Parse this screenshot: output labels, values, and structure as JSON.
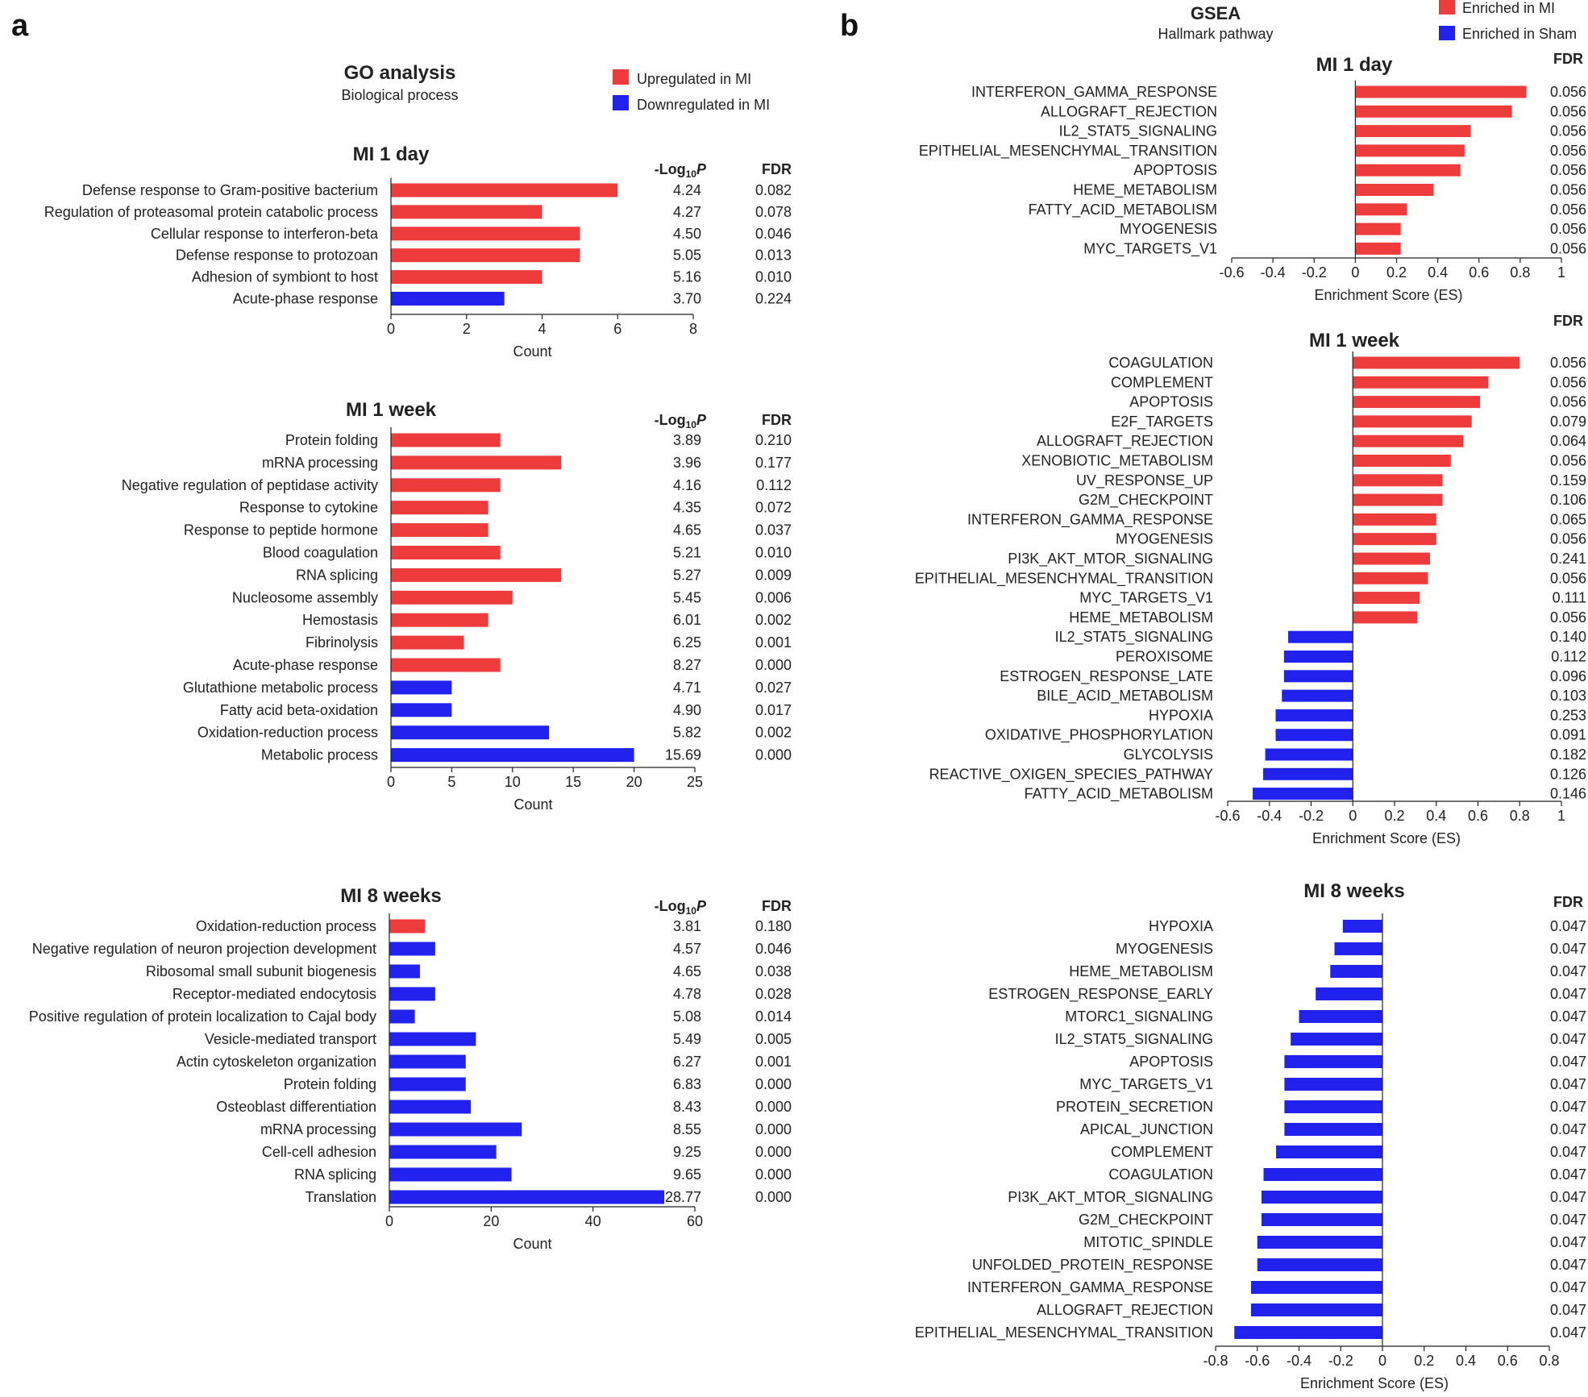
{
  "colors": {
    "up": "#ee3b3b",
    "down": "#2222ee",
    "axis": "#222222",
    "text": "#222222"
  },
  "panel_a": {
    "letter": "a",
    "title": "GO analysis",
    "subtitle": "Biological process",
    "legend": {
      "up": "Upregulated in MI",
      "down": "Downregulated in MI"
    },
    "col_logp_prefix": "-Log",
    "col_logp_sub": "10",
    "col_logp_suffix": "P",
    "col_fdr": "FDR"
  },
  "panel_b": {
    "letter": "b",
    "title": "GSEA",
    "subtitle": "Hallmark pathway",
    "legend": {
      "up": "Enriched in MI",
      "down": "Enriched in Sham"
    },
    "col_fdr": "FDR"
  },
  "chart_data": [
    {
      "id": "go_1day",
      "type": "bar",
      "orientation": "horizontal",
      "title": "MI 1 day",
      "xlabel": "Count",
      "xlim": [
        0,
        8
      ],
      "xticks": [
        0,
        2,
        4,
        6,
        8
      ],
      "categories": [
        "Defense response to Gram-positive bacterium",
        "Regulation of proteasomal protein catabolic process",
        "Cellular response to interferon-beta",
        "Defense response to protozoan",
        "Adhesion of symbiont to host",
        "Acute-phase response"
      ],
      "values": [
        6,
        4,
        5,
        5,
        4,
        3
      ],
      "direction": [
        "up",
        "up",
        "up",
        "up",
        "up",
        "down"
      ],
      "logp": [
        "4.24",
        "4.27",
        "4.50",
        "5.05",
        "5.16",
        "3.70"
      ],
      "fdr": [
        "0.082",
        "0.078",
        "0.046",
        "0.013",
        "0.010",
        "0.224"
      ]
    },
    {
      "id": "go_1week",
      "type": "bar",
      "orientation": "horizontal",
      "title": "MI 1 week",
      "xlabel": "Count",
      "xlim": [
        0,
        25
      ],
      "xticks": [
        0,
        5,
        10,
        15,
        20,
        25
      ],
      "categories": [
        "Protein folding",
        "mRNA processing",
        "Negative regulation of peptidase activity",
        "Response to cytokine",
        "Response to peptide hormone",
        "Blood coagulation",
        "RNA splicing",
        "Nucleosome assembly",
        "Hemostasis",
        "Fibrinolysis",
        "Acute-phase response",
        "Glutathione metabolic process",
        "Fatty acid beta-oxidation",
        "Oxidation-reduction process",
        "Metabolic process"
      ],
      "values": [
        9,
        14,
        9,
        8,
        8,
        9,
        14,
        10,
        8,
        6,
        9,
        5,
        5,
        13,
        20
      ],
      "direction": [
        "up",
        "up",
        "up",
        "up",
        "up",
        "up",
        "up",
        "up",
        "up",
        "up",
        "up",
        "down",
        "down",
        "down",
        "down"
      ],
      "logp": [
        "3.89",
        "3.96",
        "4.16",
        "4.35",
        "4.65",
        "5.21",
        "5.27",
        "5.45",
        "6.01",
        "6.25",
        "8.27",
        "4.71",
        "4.90",
        "5.82",
        "15.69"
      ],
      "fdr": [
        "0.210",
        "0.177",
        "0.112",
        "0.072",
        "0.037",
        "0.010",
        "0.009",
        "0.006",
        "0.002",
        "0.001",
        "0.000",
        "0.027",
        "0.017",
        "0.002",
        "0.000"
      ]
    },
    {
      "id": "go_8weeks",
      "type": "bar",
      "orientation": "horizontal",
      "title": "MI 8 weeks",
      "xlabel": "Count",
      "xlim": [
        0,
        60
      ],
      "xticks": [
        0,
        20,
        40,
        60
      ],
      "categories": [
        "Oxidation-reduction process",
        "Negative regulation of neuron projection development",
        "Ribosomal small subunit biogenesis",
        "Receptor-mediated endocytosis",
        "Positive regulation of protein localization to Cajal body",
        "Vesicle-mediated transport",
        "Actin cytoskeleton organization",
        "Protein folding",
        "Osteoblast differentiation",
        "mRNA processing",
        "Cell-cell adhesion",
        "RNA splicing",
        "Translation"
      ],
      "values": [
        7,
        9,
        6,
        9,
        5,
        17,
        15,
        15,
        16,
        26,
        21,
        24,
        54
      ],
      "direction": [
        "up",
        "down",
        "down",
        "down",
        "down",
        "down",
        "down",
        "down",
        "down",
        "down",
        "down",
        "down",
        "down"
      ],
      "logp": [
        "3.81",
        "4.57",
        "4.65",
        "4.78",
        "5.08",
        "5.49",
        "6.27",
        "6.83",
        "8.43",
        "8.55",
        "9.25",
        "9.65",
        "28.77"
      ],
      "fdr": [
        "0.180",
        "0.046",
        "0.038",
        "0.028",
        "0.014",
        "0.005",
        "0.001",
        "0.000",
        "0.000",
        "0.000",
        "0.000",
        "0.000",
        "0.000"
      ]
    },
    {
      "id": "gsea_1day",
      "type": "bar",
      "orientation": "horizontal",
      "title": "MI 1 day",
      "xlabel": "Enrichment Score (ES)",
      "xlim": [
        -0.6,
        1
      ],
      "xticks": [
        "-0.6",
        "-0.4",
        "-0.2",
        "0",
        "0.2",
        "0.4",
        "0.6",
        "0.8",
        "1"
      ],
      "categories": [
        "INTERFERON_GAMMA_RESPONSE",
        "ALLOGRAFT_REJECTION",
        "IL2_STAT5_SIGNALING",
        "EPITHELIAL_MESENCHYMAL_TRANSITION",
        "APOPTOSIS",
        "HEME_METABOLISM",
        "FATTY_ACID_METABOLISM",
        "MYOGENESIS",
        "MYC_TARGETS_V1"
      ],
      "values": [
        0.83,
        0.76,
        0.56,
        0.53,
        0.51,
        0.38,
        0.25,
        0.22,
        0.22
      ],
      "fdr": [
        "0.056",
        "0.056",
        "0.056",
        "0.056",
        "0.056",
        "0.056",
        "0.056",
        "0.056",
        "0.056"
      ]
    },
    {
      "id": "gsea_1week",
      "type": "bar",
      "orientation": "horizontal",
      "title": "MI 1 week",
      "xlabel": "Enrichment Score (ES)",
      "xlim": [
        -0.6,
        1
      ],
      "xticks": [
        "-0.6",
        "-0.4",
        "-0.2",
        "0",
        "0.2",
        "0.4",
        "0.6",
        "0.8",
        "1"
      ],
      "categories": [
        "COAGULATION",
        "COMPLEMENT",
        "APOPTOSIS",
        "E2F_TARGETS",
        "ALLOGRAFT_REJECTION",
        "XENOBIOTIC_METABOLISM",
        "UV_RESPONSE_UP",
        "G2M_CHECKPOINT",
        "INTERFERON_GAMMA_RESPONSE",
        "MYOGENESIS",
        "PI3K_AKT_MTOR_SIGNALING",
        "EPITHELIAL_MESENCHYMAL_TRANSITION",
        "MYC_TARGETS_V1",
        "HEME_METABOLISM",
        "IL2_STAT5_SIGNALING",
        "PEROXISOME",
        "ESTROGEN_RESPONSE_LATE",
        "BILE_ACID_METABOLISM",
        "HYPOXIA",
        "OXIDATIVE_PHOSPHORYLATION",
        "GLYCOLYSIS",
        "REACTIVE_OXIGEN_SPECIES_PATHWAY",
        "FATTY_ACID_METABOLISM"
      ],
      "values": [
        0.8,
        0.65,
        0.61,
        0.57,
        0.53,
        0.47,
        0.43,
        0.43,
        0.4,
        0.4,
        0.37,
        0.36,
        0.32,
        0.31,
        -0.31,
        -0.33,
        -0.33,
        -0.34,
        -0.37,
        -0.37,
        -0.42,
        -0.43,
        -0.48
      ],
      "fdr": [
        "0.056",
        "0.056",
        "0.056",
        "0.079",
        "0.064",
        "0.056",
        "0.159",
        "0.106",
        "0.065",
        "0.056",
        "0.241",
        "0.056",
        "0.111",
        "0.056",
        "0.140",
        "0.112",
        "0.096",
        "0.103",
        "0.253",
        "0.091",
        "0.182",
        "0.126",
        "0.146"
      ]
    },
    {
      "id": "gsea_8weeks",
      "type": "bar",
      "orientation": "horizontal",
      "title": "MI 8 weeks",
      "xlabel": "Enrichment Score (ES)",
      "xlim": [
        -0.8,
        0.8
      ],
      "xticks": [
        "-0.8",
        "-0.6",
        "-0.4",
        "-0.2",
        "0",
        "0.2",
        "0.4",
        "0.6",
        "0.8"
      ],
      "categories": [
        "HYPOXIA",
        "MYOGENESIS",
        "HEME_METABOLISM",
        "ESTROGEN_RESPONSE_EARLY",
        "MTORC1_SIGNALING",
        "IL2_STAT5_SIGNALING",
        "APOPTOSIS",
        "MYC_TARGETS_V1",
        "PROTEIN_SECRETION",
        "APICAL_JUNCTION",
        "COMPLEMENT",
        "COAGULATION",
        "PI3K_AKT_MTOR_SIGNALING",
        "G2M_CHECKPOINT",
        "MITOTIC_SPINDLE",
        "UNFOLDED_PROTEIN_RESPONSE",
        "INTERFERON_GAMMA_RESPONSE",
        "ALLOGRAFT_REJECTION",
        "EPITHELIAL_MESENCHYMAL_TRANSITION"
      ],
      "values": [
        -0.19,
        -0.23,
        -0.25,
        -0.32,
        -0.4,
        -0.44,
        -0.47,
        -0.47,
        -0.47,
        -0.47,
        -0.51,
        -0.57,
        -0.58,
        -0.58,
        -0.6,
        -0.6,
        -0.63,
        -0.63,
        -0.71
      ],
      "fdr": [
        "0.047",
        "0.047",
        "0.047",
        "0.047",
        "0.047",
        "0.047",
        "0.047",
        "0.047",
        "0.047",
        "0.047",
        "0.047",
        "0.047",
        "0.047",
        "0.047",
        "0.047",
        "0.047",
        "0.047",
        "0.047",
        "0.047"
      ]
    }
  ]
}
